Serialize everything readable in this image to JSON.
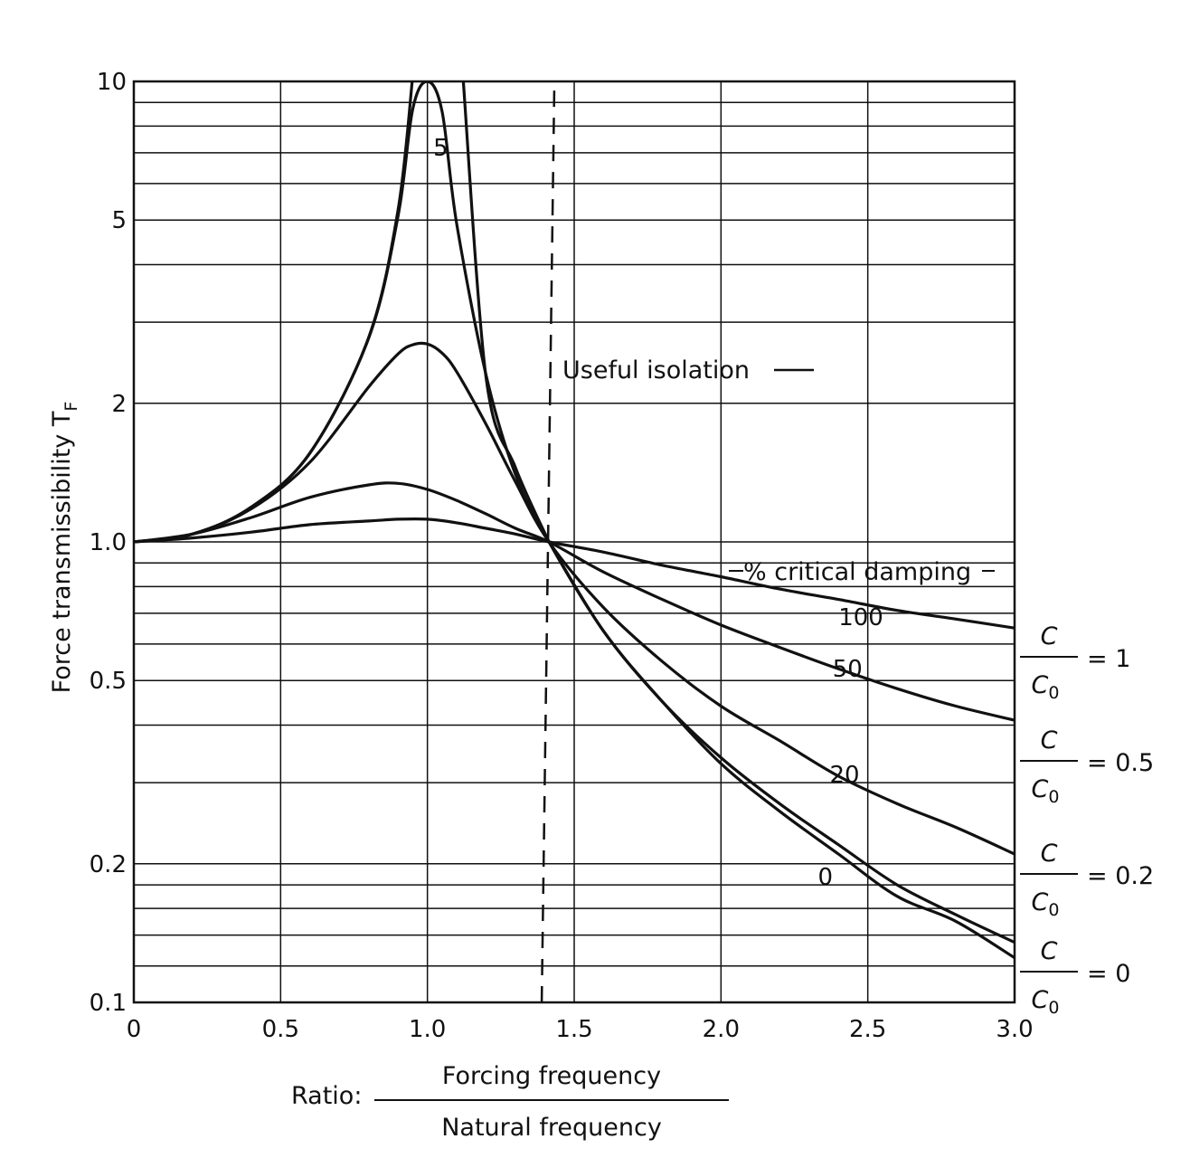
{
  "chart_data": {
    "type": "line",
    "title": "",
    "xlabel_prefix": "Ratio:",
    "xlabel_numerator": "Forcing frequency",
    "xlabel_denominator": "Natural frequency",
    "ylabel": "Force transmissibility T",
    "ylabel_subscript": "F",
    "xlim": [
      0,
      3.0
    ],
    "ylim": [
      0.1,
      10
    ],
    "yscale": "log",
    "grid": true,
    "x_ticks": [
      0,
      0.5,
      1.0,
      1.5,
      2.0,
      2.5,
      3.0
    ],
    "x_tick_labels": [
      "0",
      "0.5",
      "1.0",
      "1.5",
      "2.0",
      "2.5",
      "3.0"
    ],
    "y_ticks": [
      0.1,
      0.2,
      0.5,
      1.0,
      2,
      5,
      10
    ],
    "y_tick_labels": [
      "0.1",
      "0.2",
      "0.5",
      "1.0",
      "2",
      "5",
      "10"
    ],
    "y_grid": [
      0.1,
      0.12,
      0.14,
      0.16,
      0.18,
      0.2,
      0.3,
      0.4,
      0.5,
      0.6,
      0.7,
      0.8,
      0.9,
      1.0,
      2,
      3,
      4,
      5,
      6,
      7,
      8,
      9,
      10
    ],
    "series": [
      {
        "label": "0",
        "damping_ratio": 0,
        "x": [
          0,
          0.2,
          0.4,
          0.6,
          0.8,
          0.9,
          0.95,
          1.414,
          1.6,
          1.8,
          2.0,
          2.2,
          2.4,
          2.6,
          2.8,
          3.0
        ],
        "y": [
          1.0,
          1.04,
          1.19,
          1.56,
          2.78,
          5.26,
          10.26,
          1.0,
          0.64,
          0.45,
          0.33,
          0.26,
          0.21,
          0.17,
          0.15,
          0.125
        ]
      },
      {
        "label": "5",
        "damping_ratio": 0.05,
        "x": [
          0,
          0.2,
          0.4,
          0.6,
          0.8,
          0.9,
          0.95,
          1.0,
          1.05,
          1.1,
          1.2,
          1.3,
          1.414,
          1.6,
          1.8,
          2.0,
          2.2,
          2.4,
          2.6,
          2.8,
          3.0
        ],
        "y": [
          1.0,
          1.04,
          1.19,
          1.56,
          2.77,
          5.1,
          8.7,
          10.0,
          8.6,
          4.9,
          2.3,
          1.4,
          1.0,
          0.64,
          0.45,
          0.34,
          0.27,
          0.22,
          0.18,
          0.155,
          0.135
        ]
      },
      {
        "label": "20",
        "damping_ratio": 0.2,
        "x": [
          0,
          0.2,
          0.4,
          0.6,
          0.8,
          0.9,
          0.95,
          1.0,
          1.05,
          1.1,
          1.2,
          1.3,
          1.414,
          1.6,
          1.8,
          2.0,
          2.2,
          2.4,
          2.6,
          2.8,
          3.0
        ],
        "y": [
          1.0,
          1.04,
          1.18,
          1.49,
          2.17,
          2.56,
          2.68,
          2.69,
          2.57,
          2.34,
          1.8,
          1.35,
          1.0,
          0.72,
          0.55,
          0.44,
          0.37,
          0.31,
          0.27,
          0.24,
          0.21
        ]
      },
      {
        "label": "50",
        "damping_ratio": 0.5,
        "x": [
          0,
          0.2,
          0.4,
          0.6,
          0.8,
          0.9,
          1.0,
          1.1,
          1.2,
          1.3,
          1.414,
          1.6,
          1.8,
          2.0,
          2.2,
          2.4,
          2.6,
          2.8,
          3.0
        ],
        "y": [
          1.0,
          1.04,
          1.13,
          1.25,
          1.33,
          1.34,
          1.3,
          1.23,
          1.15,
          1.07,
          1.0,
          0.86,
          0.75,
          0.66,
          0.59,
          0.53,
          0.48,
          0.44,
          0.41
        ]
      },
      {
        "label": "100",
        "damping_ratio": 1.0,
        "x": [
          0,
          0.2,
          0.4,
          0.6,
          0.8,
          0.9,
          1.0,
          1.1,
          1.2,
          1.3,
          1.414,
          1.6,
          1.8,
          2.0,
          2.2,
          2.4,
          2.6,
          2.8,
          3.0
        ],
        "y": [
          1.0,
          1.02,
          1.05,
          1.09,
          1.11,
          1.12,
          1.12,
          1.1,
          1.07,
          1.04,
          1.0,
          0.95,
          0.89,
          0.84,
          0.79,
          0.75,
          0.71,
          0.68,
          0.65
        ]
      }
    ],
    "vertical_marker": {
      "x": 1.414,
      "style": "dashed"
    },
    "annotations": {
      "useful_isolation": "Useful isolation",
      "critical_damping": "% critical damping"
    },
    "ratio_labels": [
      {
        "num": "C",
        "den": "C",
        "den_sub": "0",
        "rhs": "= 1"
      },
      {
        "num": "C",
        "den": "C",
        "den_sub": "0",
        "rhs": "= 0.5"
      },
      {
        "num": "C",
        "den": "C",
        "den_sub": "0",
        "rhs": "= 0.2"
      },
      {
        "num": "C",
        "den": "C",
        "den_sub": "0",
        "rhs": "= 0"
      }
    ]
  }
}
